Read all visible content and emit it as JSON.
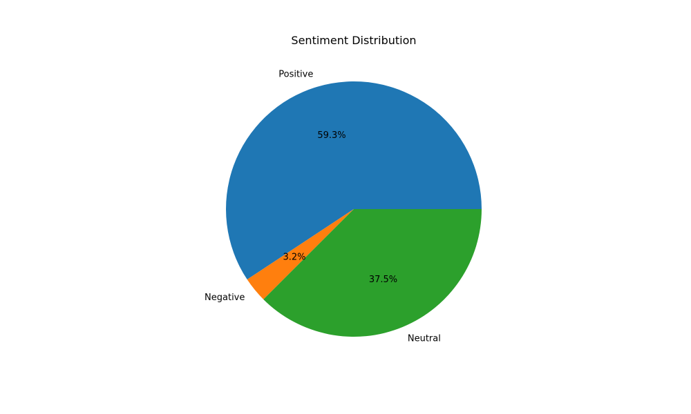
{
  "chart_data": {
    "type": "pie",
    "title": "Sentiment Distribution",
    "start_angle_deg": 0,
    "direction": "counterclockwise",
    "slices": [
      {
        "label": "Positive",
        "value": 59.3,
        "pct_label": "59.3%",
        "color": "#1f77b4"
      },
      {
        "label": "Negative",
        "value": 3.2,
        "pct_label": "3.2%",
        "color": "#ff7f0e"
      },
      {
        "label": "Neutral",
        "value": 37.5,
        "pct_label": "37.5%",
        "color": "#2ca02c"
      }
    ]
  }
}
